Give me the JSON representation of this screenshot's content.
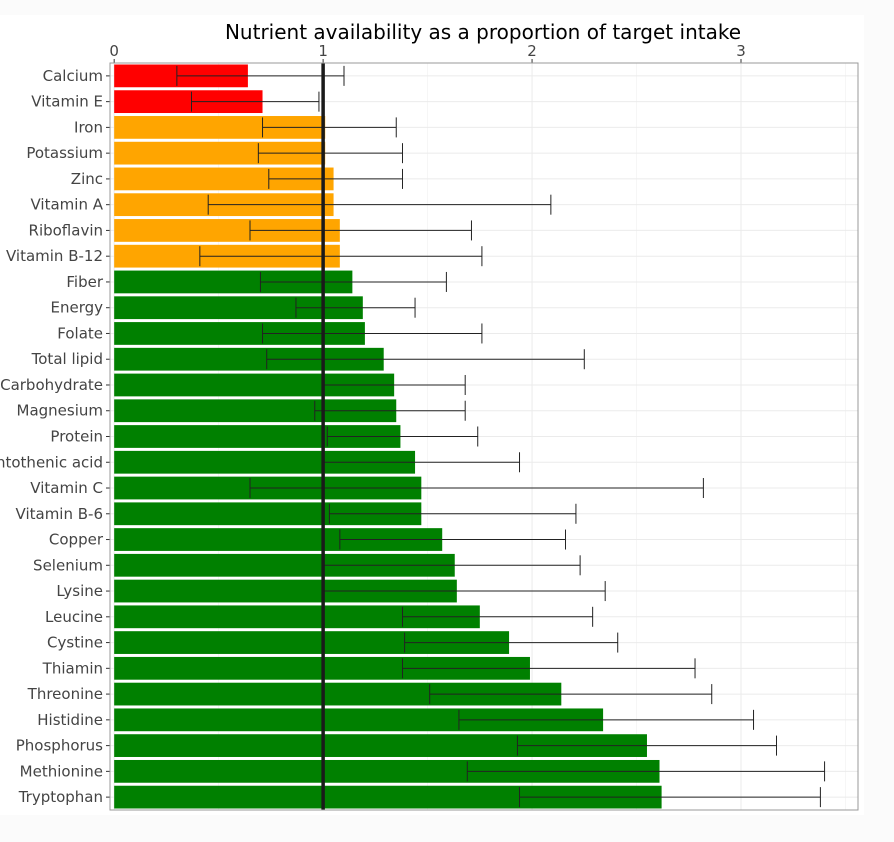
{
  "chart_data": {
    "type": "bar",
    "orientation": "horizontal",
    "title": "Nutrient availability as a proportion of target intake",
    "xlabel": "",
    "ylabel": "",
    "x_axis_position": "top",
    "xlim": [
      -0.02,
      3.56
    ],
    "x_ticks": [
      0,
      1,
      2,
      3
    ],
    "reference_line": 1,
    "grid": true,
    "legend": "none",
    "colors": {
      "red": "#ff0000",
      "orange": "#ffa500",
      "green": "#008000",
      "reference": "#1a1a1a",
      "errorbar": "#222222"
    },
    "categories": [
      "Calcium",
      "Vitamin E",
      "Iron",
      "Potassium",
      "Zinc",
      "Vitamin A",
      "Riboflavin",
      "Vitamin B-12",
      "Fiber",
      "Energy",
      "Folate",
      "Total lipid",
      "Carbohydrate",
      "Magnesium",
      "Protein",
      "Pantothenic acid",
      "Vitamin C",
      "Vitamin B-6",
      "Copper",
      "Selenium",
      "Lysine",
      "Leucine",
      "Cystine",
      "Thiamin",
      "Threonine",
      "Histidine",
      "Phosphorus",
      "Methionine",
      "Tryptophan"
    ],
    "values": [
      0.64,
      0.71,
      1.01,
      1.01,
      1.05,
      1.05,
      1.08,
      1.08,
      1.14,
      1.19,
      1.2,
      1.29,
      1.34,
      1.35,
      1.37,
      1.44,
      1.47,
      1.47,
      1.57,
      1.63,
      1.64,
      1.75,
      1.89,
      1.99,
      2.14,
      2.34,
      2.55,
      2.61,
      2.62
    ],
    "error_low": [
      0.3,
      0.37,
      0.71,
      0.69,
      0.74,
      0.45,
      0.65,
      0.41,
      0.7,
      0.87,
      0.71,
      0.73,
      1.0,
      0.96,
      1.02,
      1.0,
      0.65,
      1.03,
      1.08,
      1.0,
      1.0,
      1.38,
      1.39,
      1.38,
      1.51,
      1.65,
      1.93,
      1.69,
      1.94
    ],
    "error_high": [
      1.1,
      0.98,
      1.35,
      1.38,
      1.38,
      2.09,
      1.71,
      1.76,
      1.59,
      1.44,
      1.76,
      2.25,
      1.68,
      1.68,
      1.74,
      1.94,
      2.82,
      2.21,
      2.16,
      2.23,
      2.35,
      2.29,
      2.41,
      2.78,
      2.86,
      3.06,
      3.17,
      3.4,
      3.38
    ],
    "bar_colors": [
      "red",
      "red",
      "orange",
      "orange",
      "orange",
      "orange",
      "orange",
      "orange",
      "green",
      "green",
      "green",
      "green",
      "green",
      "green",
      "green",
      "green",
      "green",
      "green",
      "green",
      "green",
      "green",
      "green",
      "green",
      "green",
      "green",
      "green",
      "green",
      "green",
      "green"
    ]
  }
}
